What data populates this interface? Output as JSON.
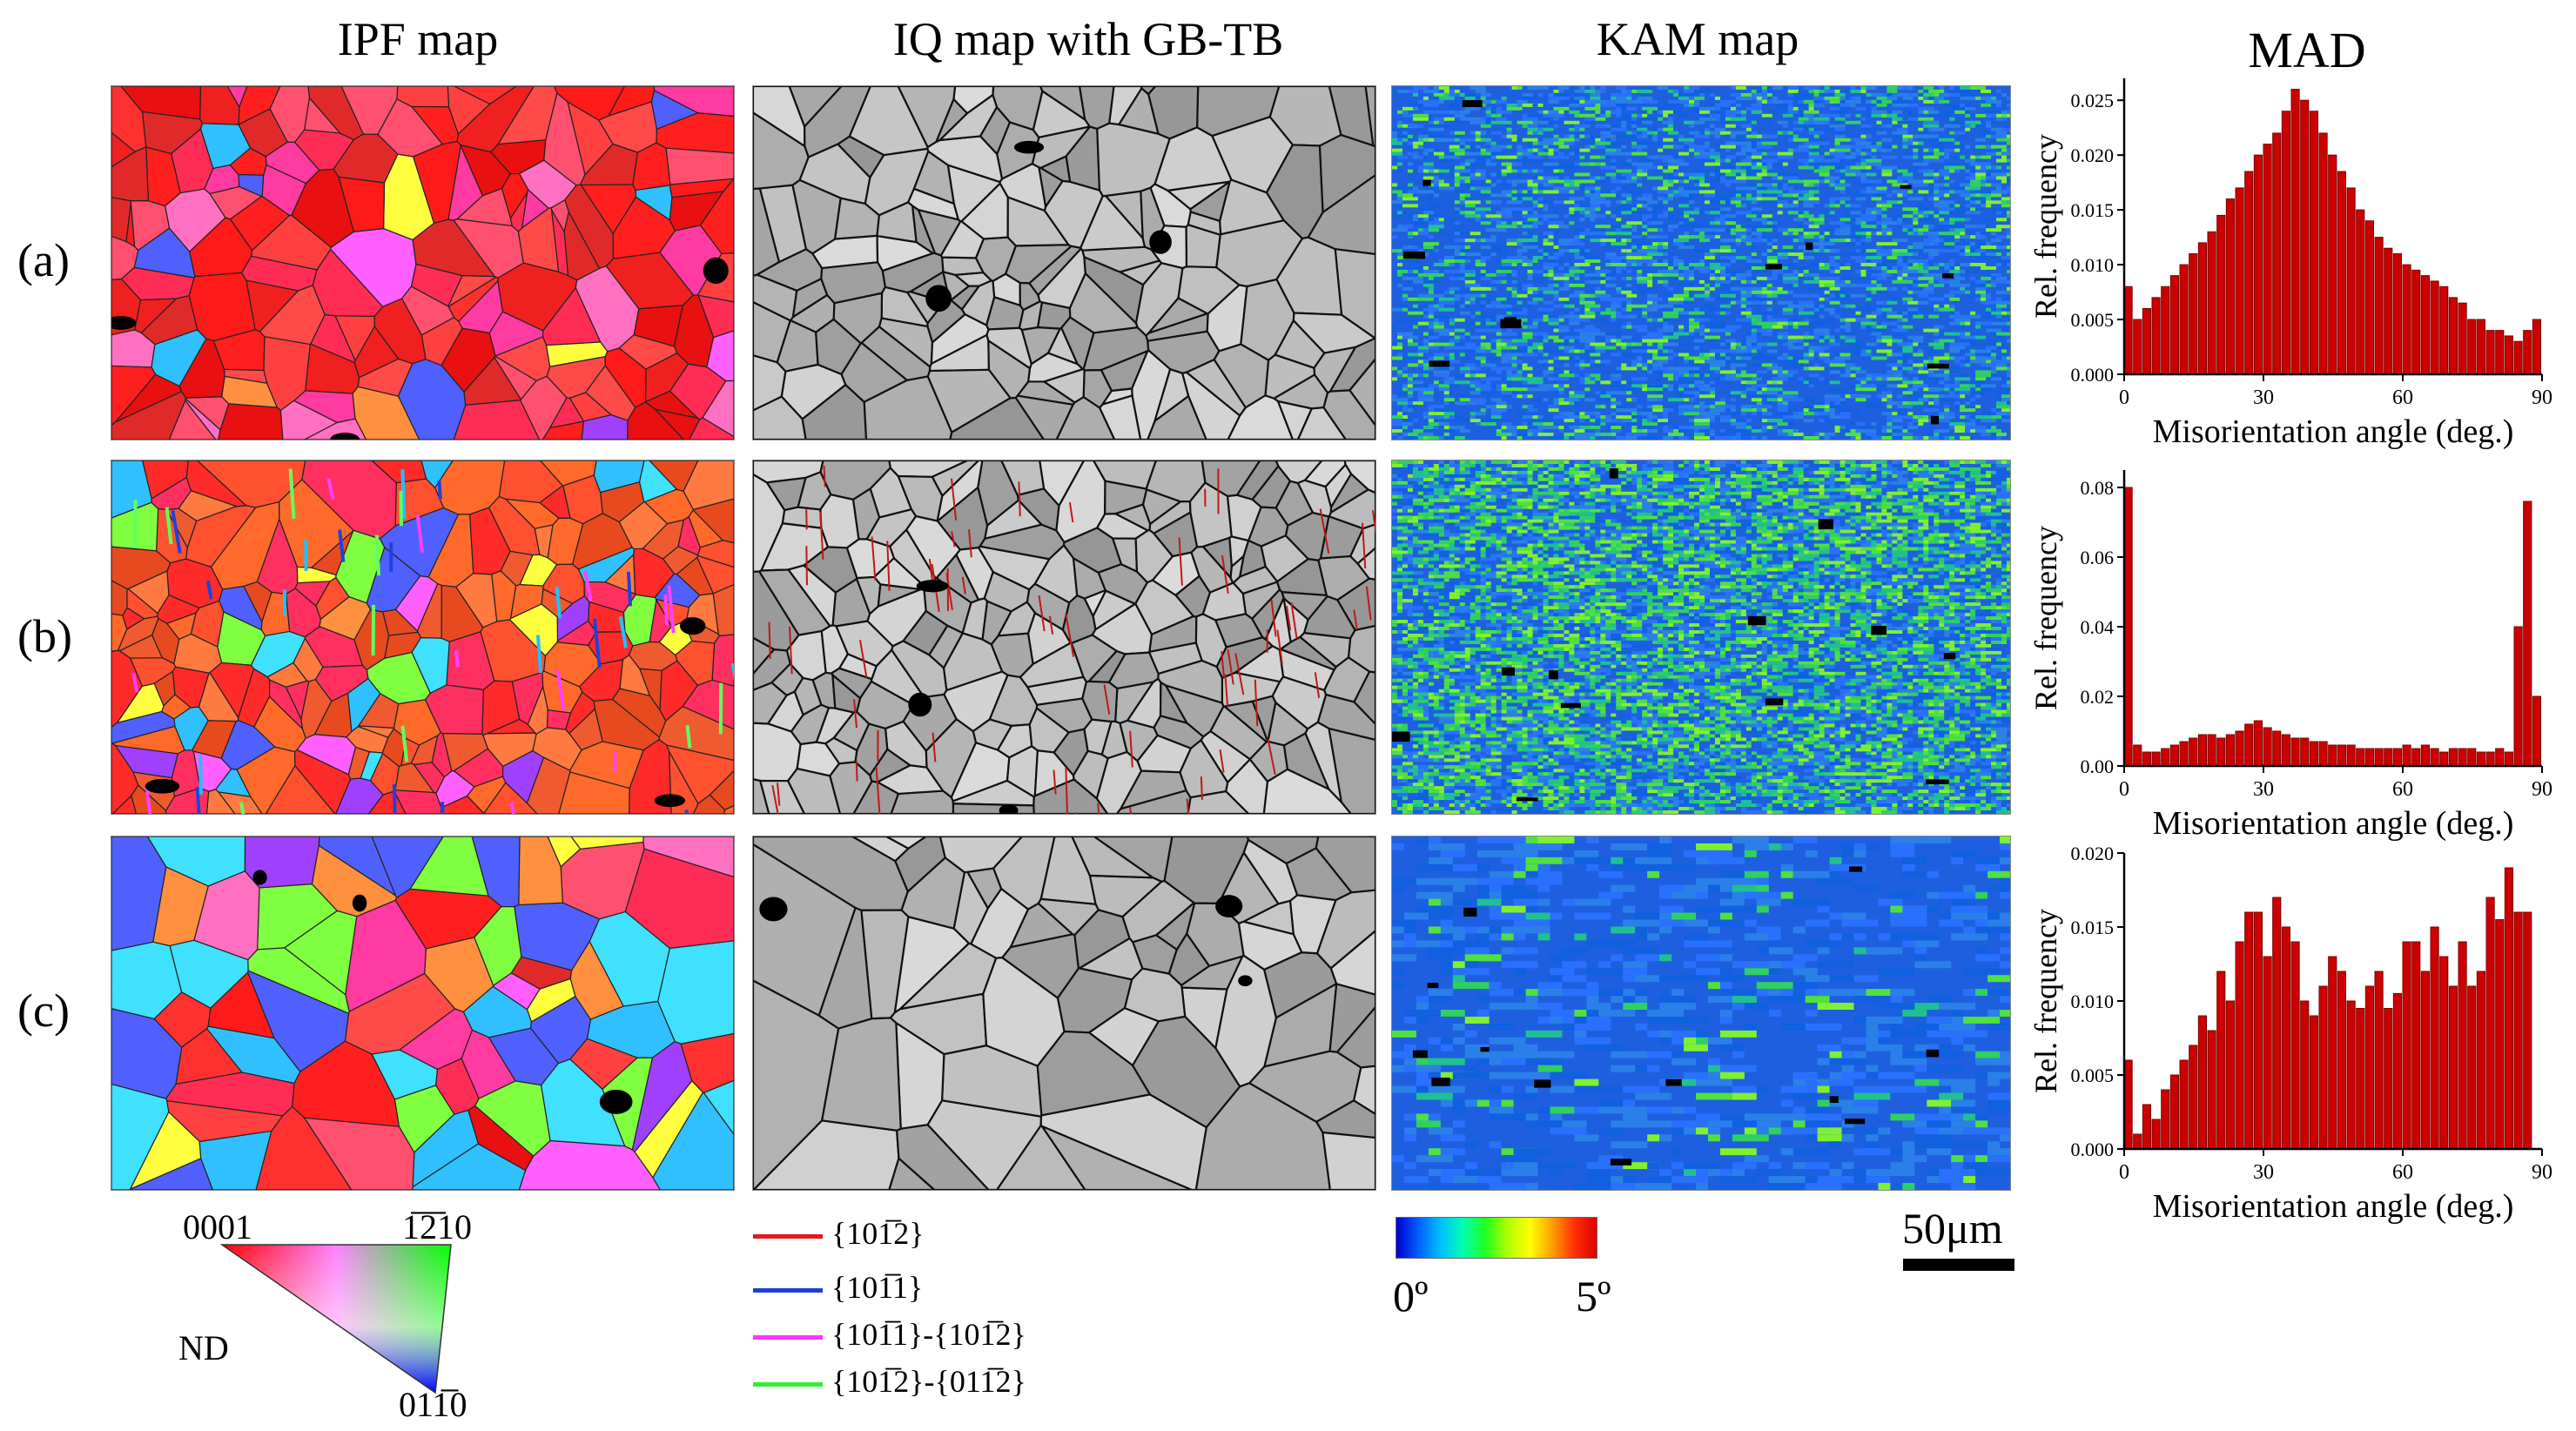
{
  "columns": {
    "ipf": "IPF map",
    "iq": "IQ map with GB-TB",
    "kam": "KAM map",
    "mad": "MAD"
  },
  "rows": [
    "(a)",
    "(b)",
    "(c)"
  ],
  "ipf_legend": {
    "top_left": "0001",
    "top_right": "1̅2̅10",
    "bottom": "011̅0",
    "side": "ND"
  },
  "twin_legend": [
    {
      "label": "{101̅2}",
      "color": "#e31a1c"
    },
    {
      "label": "{101̅1}",
      "color": "#1f3fd6"
    },
    {
      "label": "{101̅1}-{101̅2}",
      "color": "#ff33ff"
    },
    {
      "label": "{101̅2}-{011̅2}",
      "color": "#33ee33"
    }
  ],
  "kam_scale": {
    "min": "0º",
    "max": "5º"
  },
  "scale_bar": "50μm",
  "chart_data": [
    {
      "type": "bar",
      "panel": "(a)",
      "xlabel": "Misorientation angle (deg.)",
      "ylabel": "Rel. frequency",
      "xlim": [
        0,
        90
      ],
      "ylim": [
        0,
        0.027
      ],
      "xticks": [
        0,
        30,
        60,
        90
      ],
      "yticks": [
        0.0,
        0.005,
        0.01,
        0.015,
        0.02,
        0.025
      ],
      "ytick_labels": [
        "0.000",
        "0.005",
        "0.010",
        "0.015",
        "0.020",
        "0.025"
      ],
      "bar_color": "#cc0000",
      "bin_width": 2,
      "values": [
        0.008,
        0.005,
        0.006,
        0.007,
        0.008,
        0.009,
        0.01,
        0.011,
        0.012,
        0.013,
        0.0145,
        0.016,
        0.017,
        0.0185,
        0.02,
        0.021,
        0.022,
        0.024,
        0.026,
        0.025,
        0.024,
        0.022,
        0.02,
        0.0185,
        0.017,
        0.015,
        0.014,
        0.0125,
        0.0115,
        0.011,
        0.01,
        0.0095,
        0.009,
        0.0085,
        0.008,
        0.007,
        0.0065,
        0.005,
        0.005,
        0.004,
        0.004,
        0.0035,
        0.003,
        0.004,
        0.005
      ]
    },
    {
      "type": "bar",
      "panel": "(b)",
      "xlabel": "Misorientation angle (deg.)",
      "ylabel": "Rel. frequency",
      "xlim": [
        0,
        90
      ],
      "ylim": [
        0,
        0.085
      ],
      "xticks": [
        0,
        30,
        60,
        90
      ],
      "yticks": [
        0.0,
        0.02,
        0.04,
        0.06,
        0.08
      ],
      "ytick_labels": [
        "0.00",
        "0.02",
        "0.04",
        "0.06",
        "0.08"
      ],
      "bar_color": "#cc0000",
      "bin_width": 2,
      "values": [
        0.08,
        0.006,
        0.004,
        0.004,
        0.005,
        0.006,
        0.007,
        0.008,
        0.009,
        0.009,
        0.008,
        0.009,
        0.01,
        0.012,
        0.013,
        0.011,
        0.01,
        0.009,
        0.008,
        0.008,
        0.007,
        0.007,
        0.006,
        0.006,
        0.006,
        0.005,
        0.005,
        0.005,
        0.005,
        0.005,
        0.006,
        0.005,
        0.006,
        0.005,
        0.004,
        0.005,
        0.005,
        0.005,
        0.004,
        0.004,
        0.005,
        0.004,
        0.04,
        0.076,
        0.02
      ]
    },
    {
      "type": "bar",
      "panel": "(c)",
      "xlabel": "Misorientation angle (deg.)",
      "ylabel": "Rel. frequency",
      "xlim": [
        0,
        90
      ],
      "ylim": [
        0,
        0.02
      ],
      "xticks": [
        0,
        30,
        60,
        90
      ],
      "yticks": [
        0.0,
        0.005,
        0.01,
        0.015,
        0.02
      ],
      "ytick_labels": [
        "0.000",
        "0.005",
        "0.010",
        "0.015",
        "0.020"
      ],
      "bar_color": "#cc0000",
      "bin_width": 2,
      "values": [
        0.006,
        0.001,
        0.003,
        0.002,
        0.004,
        0.005,
        0.006,
        0.007,
        0.009,
        0.008,
        0.012,
        0.01,
        0.014,
        0.016,
        0.016,
        0.013,
        0.017,
        0.015,
        0.014,
        0.01,
        0.009,
        0.011,
        0.013,
        0.012,
        0.01,
        0.0095,
        0.011,
        0.012,
        0.0095,
        0.0105,
        0.014,
        0.014,
        0.012,
        0.015,
        0.013,
        0.011,
        0.014,
        0.011,
        0.012,
        0.017,
        0.0155,
        0.019,
        0.016,
        0.016,
        0.0
      ]
    }
  ]
}
